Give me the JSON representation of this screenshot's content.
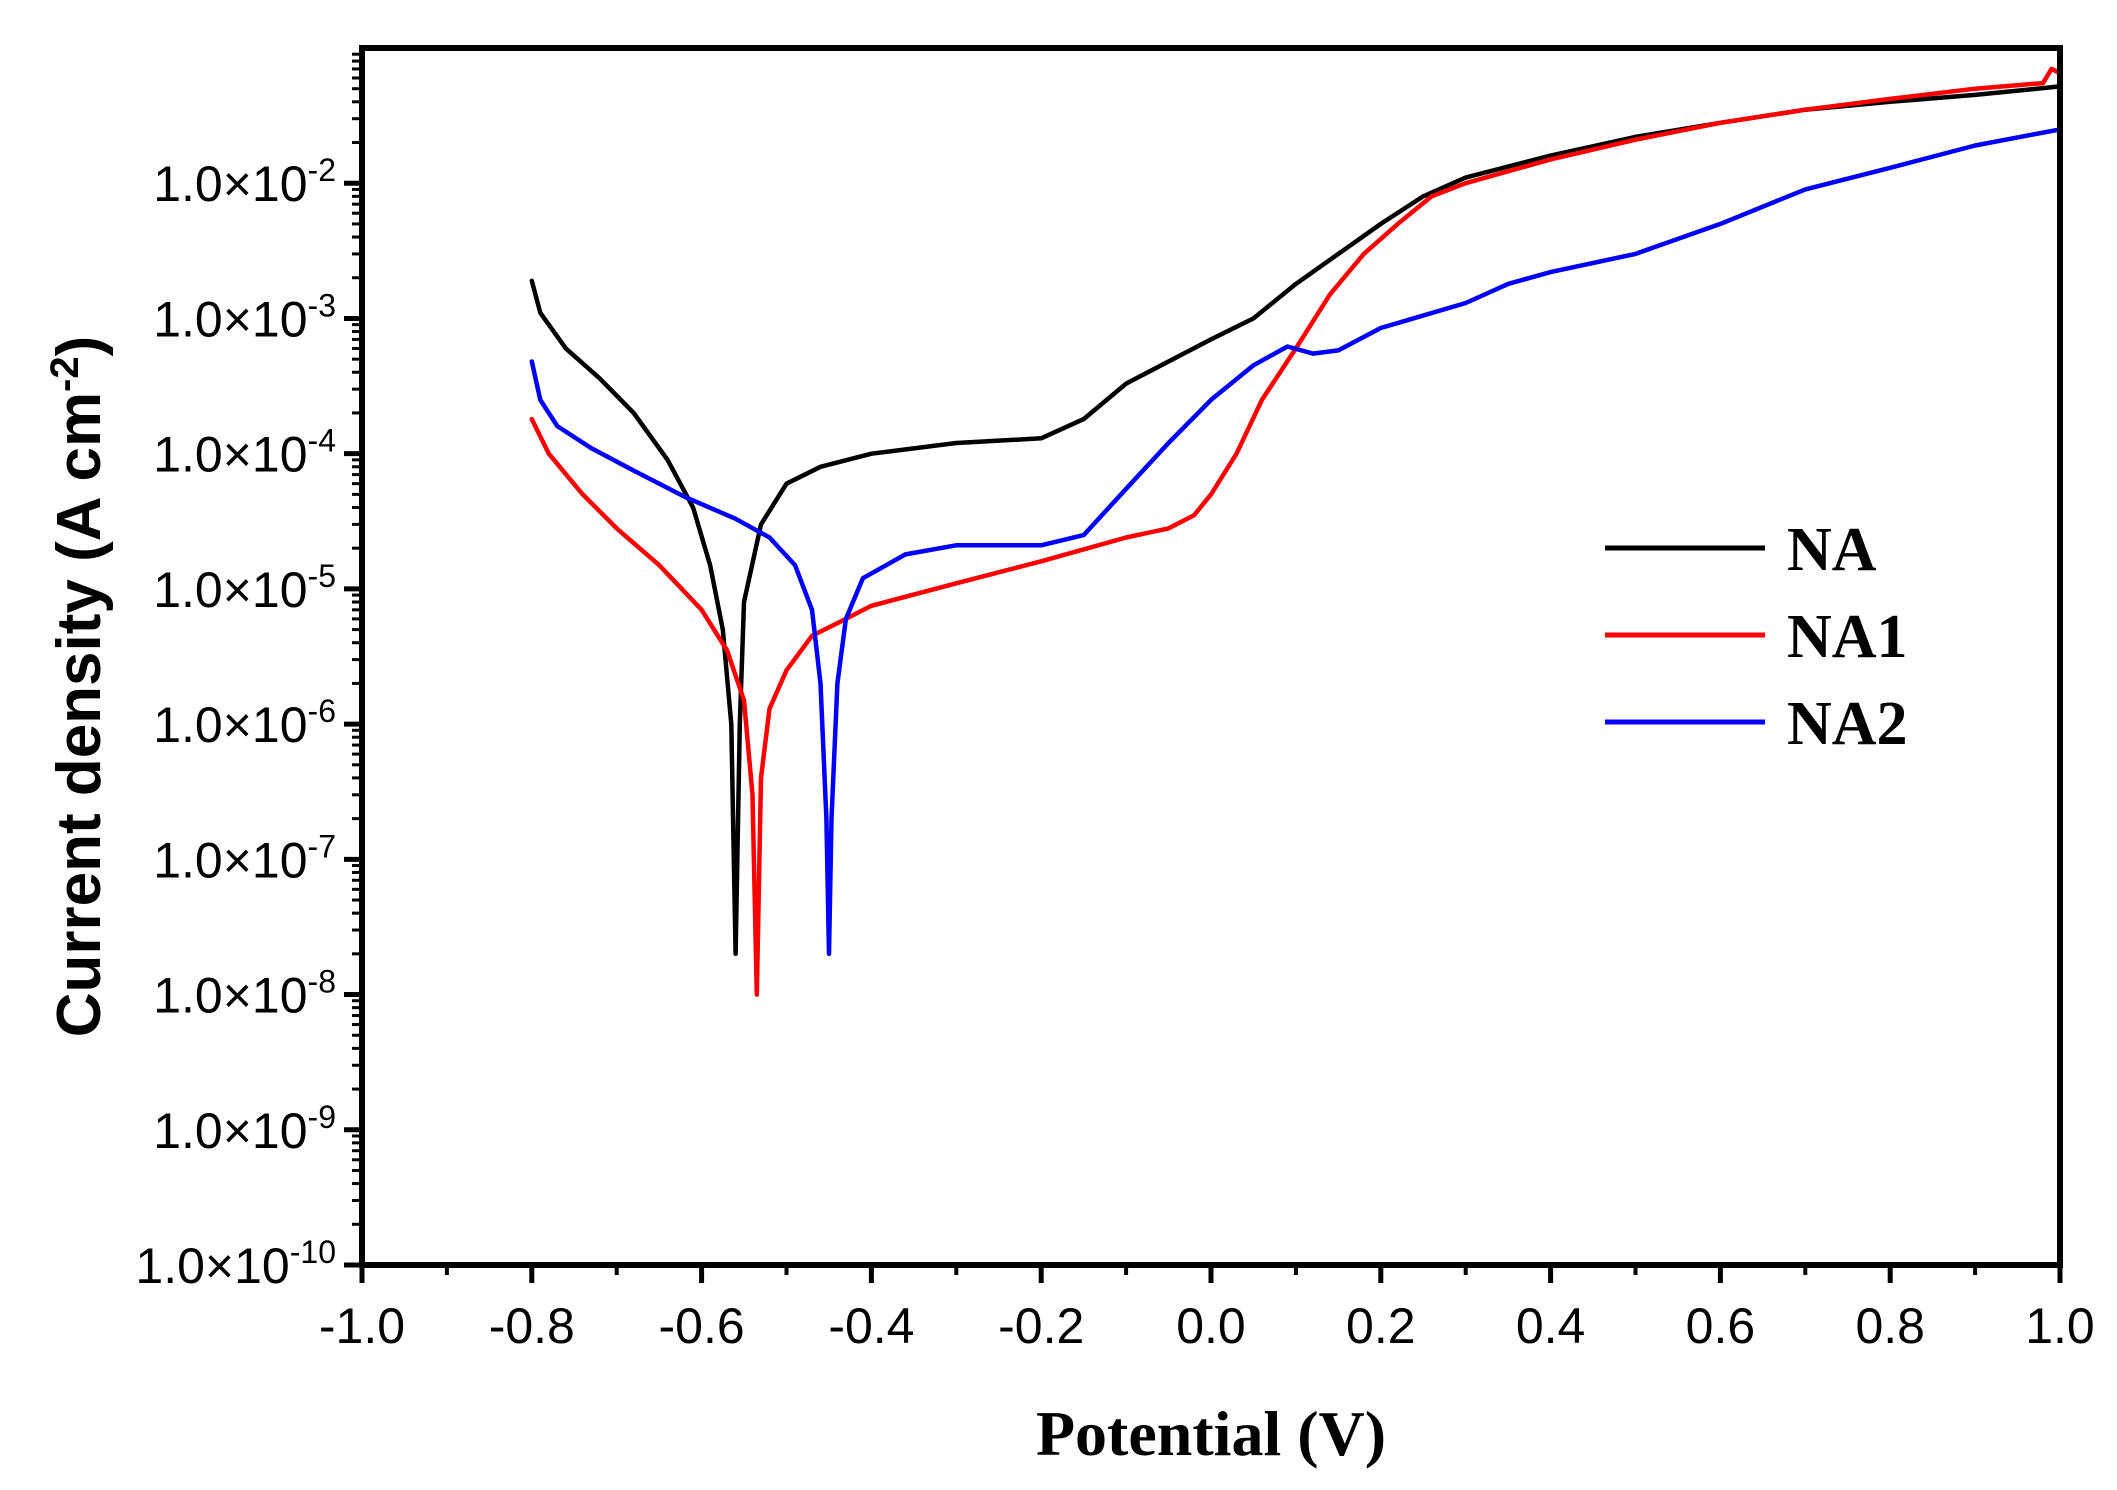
{
  "chart_data": {
    "type": "line",
    "title": "",
    "xlabel": "Potential (V)",
    "ylabel": "Current density (A cm-2)",
    "ylabel_parts": {
      "main": "Current density (A cm",
      "sup": "-2",
      "end": ")"
    },
    "x_scale": "linear",
    "y_scale": "log",
    "xlim": [
      -1.0,
      1.0
    ],
    "ylim_exponent": [
      -10,
      -1
    ],
    "x_ticks": [
      "-1.0",
      "-0.8",
      "-0.6",
      "-0.4",
      "-0.2",
      "0.0",
      "0.2",
      "0.4",
      "0.6",
      "0.8",
      "1.0"
    ],
    "y_tick_mantissa": "1.0×10",
    "y_ticks": [
      {
        "exp": -10,
        "label": "-10"
      },
      {
        "exp": -9,
        "label": "-9"
      },
      {
        "exp": -8,
        "label": "-8"
      },
      {
        "exp": -7,
        "label": "-7"
      },
      {
        "exp": -6,
        "label": "-6"
      },
      {
        "exp": -5,
        "label": "-5"
      },
      {
        "exp": -4,
        "label": "-4"
      },
      {
        "exp": -3,
        "label": "-3"
      },
      {
        "exp": -2,
        "label": "-2"
      }
    ],
    "legend_position": "right-middle",
    "grid": false,
    "series": [
      {
        "name": "NA",
        "color": "#000000",
        "points": [
          [
            -0.8,
            0.0019
          ],
          [
            -0.79,
            0.0011
          ],
          [
            -0.76,
            0.0006
          ],
          [
            -0.72,
            0.00036
          ],
          [
            -0.68,
            0.0002
          ],
          [
            -0.64,
            9e-05
          ],
          [
            -0.61,
            4e-05
          ],
          [
            -0.59,
            1.5e-05
          ],
          [
            -0.575,
            5e-06
          ],
          [
            -0.565,
            1e-06
          ],
          [
            -0.56,
            2e-08
          ],
          [
            -0.555,
            1e-06
          ],
          [
            -0.55,
            8e-06
          ],
          [
            -0.53,
            3e-05
          ],
          [
            -0.5,
            6e-05
          ],
          [
            -0.46,
            8e-05
          ],
          [
            -0.4,
            0.0001
          ],
          [
            -0.3,
            0.00012
          ],
          [
            -0.2,
            0.00013
          ],
          [
            -0.15,
            0.00018
          ],
          [
            -0.1,
            0.00033
          ],
          [
            -0.05,
            0.00048
          ],
          [
            0.0,
            0.0007
          ],
          [
            0.05,
            0.001
          ],
          [
            0.1,
            0.0018
          ],
          [
            0.15,
            0.003
          ],
          [
            0.2,
            0.005
          ],
          [
            0.25,
            0.008
          ],
          [
            0.3,
            0.011
          ],
          [
            0.4,
            0.016
          ],
          [
            0.5,
            0.022
          ],
          [
            0.6,
            0.028
          ],
          [
            0.7,
            0.035
          ],
          [
            0.8,
            0.04
          ],
          [
            0.9,
            0.045
          ],
          [
            1.0,
            0.052
          ]
        ]
      },
      {
        "name": "NA1",
        "color": "#ff0000",
        "points": [
          [
            -0.8,
            0.00018
          ],
          [
            -0.78,
            0.0001
          ],
          [
            -0.74,
            5e-05
          ],
          [
            -0.7,
            2.8e-05
          ],
          [
            -0.65,
            1.5e-05
          ],
          [
            -0.6,
            7e-06
          ],
          [
            -0.57,
            3.5e-06
          ],
          [
            -0.55,
            1.5e-06
          ],
          [
            -0.54,
            3e-07
          ],
          [
            -0.535,
            1e-08
          ],
          [
            -0.53,
            4e-07
          ],
          [
            -0.52,
            1.3e-06
          ],
          [
            -0.5,
            2.5e-06
          ],
          [
            -0.47,
            4.5e-06
          ],
          [
            -0.43,
            6e-06
          ],
          [
            -0.4,
            7.5e-06
          ],
          [
            -0.3,
            1.1e-05
          ],
          [
            -0.2,
            1.6e-05
          ],
          [
            -0.1,
            2.4e-05
          ],
          [
            -0.05,
            2.8e-05
          ],
          [
            -0.02,
            3.5e-05
          ],
          [
            0.0,
            5e-05
          ],
          [
            0.03,
            0.0001
          ],
          [
            0.06,
            0.00025
          ],
          [
            0.1,
            0.0006
          ],
          [
            0.14,
            0.0015
          ],
          [
            0.18,
            0.003
          ],
          [
            0.22,
            0.005
          ],
          [
            0.26,
            0.008
          ],
          [
            0.3,
            0.01
          ],
          [
            0.4,
            0.015
          ],
          [
            0.5,
            0.021
          ],
          [
            0.6,
            0.028
          ],
          [
            0.7,
            0.035
          ],
          [
            0.8,
            0.042
          ],
          [
            0.9,
            0.05
          ],
          [
            0.98,
            0.055
          ],
          [
            0.99,
            0.07
          ],
          [
            1.0,
            0.065
          ]
        ]
      },
      {
        "name": "NA2",
        "color": "#0000ff",
        "points": [
          [
            -0.8,
            0.00048
          ],
          [
            -0.79,
            0.00025
          ],
          [
            -0.77,
            0.00016
          ],
          [
            -0.73,
            0.00011
          ],
          [
            -0.68,
            7.5e-05
          ],
          [
            -0.62,
            4.8e-05
          ],
          [
            -0.56,
            3.3e-05
          ],
          [
            -0.52,
            2.4e-05
          ],
          [
            -0.49,
            1.5e-05
          ],
          [
            -0.47,
            7e-06
          ],
          [
            -0.46,
            2e-06
          ],
          [
            -0.453,
            2e-07
          ],
          [
            -0.45,
            2e-08
          ],
          [
            -0.447,
            2e-07
          ],
          [
            -0.44,
            2e-06
          ],
          [
            -0.43,
            6e-06
          ],
          [
            -0.41,
            1.2e-05
          ],
          [
            -0.36,
            1.8e-05
          ],
          [
            -0.3,
            2.1e-05
          ],
          [
            -0.2,
            2.1e-05
          ],
          [
            -0.15,
            2.5e-05
          ],
          [
            -0.1,
            5.5e-05
          ],
          [
            -0.05,
            0.00012
          ],
          [
            0.0,
            0.00025
          ],
          [
            0.05,
            0.00045
          ],
          [
            0.09,
            0.00062
          ],
          [
            0.12,
            0.00055
          ],
          [
            0.15,
            0.00058
          ],
          [
            0.2,
            0.00085
          ],
          [
            0.3,
            0.0013
          ],
          [
            0.35,
            0.0018
          ],
          [
            0.4,
            0.0022
          ],
          [
            0.5,
            0.003
          ],
          [
            0.6,
            0.005
          ],
          [
            0.7,
            0.009
          ],
          [
            0.8,
            0.013
          ],
          [
            0.9,
            0.019
          ],
          [
            1.0,
            0.025
          ]
        ]
      }
    ]
  }
}
